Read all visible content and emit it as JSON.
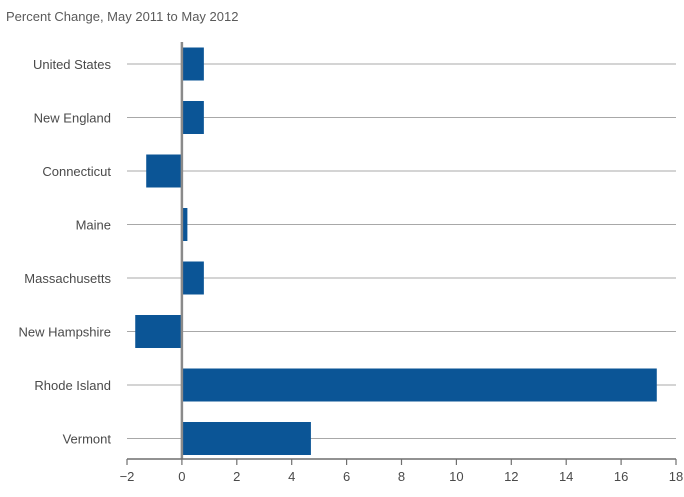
{
  "chart_data": {
    "type": "bar",
    "orientation": "horizontal",
    "title": "Percent Change, May 2011 to May 2012",
    "xlabel": "",
    "ylabel": "",
    "categories": [
      "United States",
      "New England",
      "Connecticut",
      "Maine",
      "Massachusetts",
      "New Hampshire",
      "Rhode Island",
      "Vermont"
    ],
    "values": [
      0.8,
      0.8,
      -1.3,
      0.2,
      0.8,
      -1.7,
      17.3,
      4.7
    ],
    "xlim": [
      -2,
      18
    ],
    "x_ticks": [
      -2,
      0,
      2,
      4,
      6,
      8,
      10,
      12,
      14,
      16,
      18
    ],
    "x_tick_labels": [
      "−2",
      "0",
      "2",
      "4",
      "6",
      "8",
      "10",
      "12",
      "14",
      "16",
      "18"
    ],
    "grid": "horizontal lines at each category",
    "legend": "none",
    "colors": {
      "bar": "#0b5596",
      "gridline": "#a8a8a8",
      "zero_line": "#8a8a8a",
      "axis": "#6f6f6f",
      "text": "#4a4a4a",
      "title_text": "#5a5a5a"
    }
  }
}
